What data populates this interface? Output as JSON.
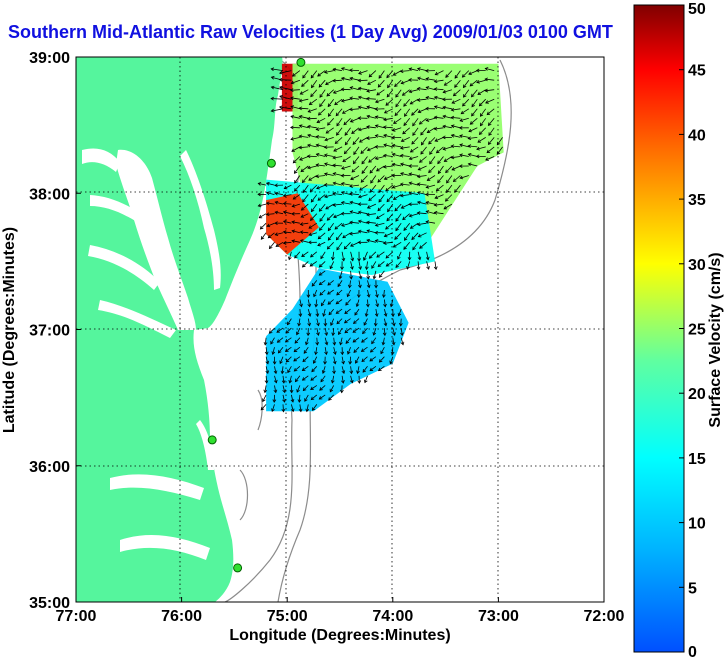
{
  "chart_data": {
    "type": "heatmap",
    "title": "Southern Mid-Atlantic Raw Velocities (1 Day Avg) 2009/01/03 0100 GMT",
    "xlabel": "Longitude (Degrees:Minutes)",
    "ylabel": "Latitude (Degrees:Minutes)",
    "xlim": [
      -77,
      -72
    ],
    "ylim": [
      35,
      39
    ],
    "x_ticks": [
      "77:00",
      "76:00",
      "75:00",
      "74:00",
      "73:00",
      "72:00"
    ],
    "y_ticks": [
      "35:00",
      "36:00",
      "37:00",
      "38:00",
      "39:00"
    ],
    "grid": true,
    "colorbar": {
      "label": "Surface Velocity (cm/s)",
      "range": [
        0,
        50
      ],
      "ticks": [
        "0",
        "5",
        "10",
        "15",
        "20",
        "25",
        "30",
        "35",
        "40",
        "45",
        "50"
      ],
      "colormap": "jet"
    },
    "stations": [
      {
        "lon": -74.87,
        "lat": 38.96
      },
      {
        "lon": -75.15,
        "lat": 38.22
      },
      {
        "lon": -75.71,
        "lat": 36.19
      },
      {
        "lon": -75.47,
        "lat": 35.25
      }
    ],
    "regions": [
      {
        "name": "north-jet",
        "speed": 47,
        "poly": [
          [
            -75.05,
            38.95
          ],
          [
            -74.9,
            38.95
          ],
          [
            -74.9,
            38.6
          ],
          [
            -75.05,
            38.6
          ]
        ]
      },
      {
        "name": "north-field",
        "speed": 25,
        "poly": [
          [
            -74.95,
            38.95
          ],
          [
            -73.0,
            38.95
          ],
          [
            -72.95,
            38.3
          ],
          [
            -73.2,
            38.2
          ],
          [
            -73.7,
            37.6
          ],
          [
            -74.2,
            37.55
          ],
          [
            -74.5,
            37.5
          ],
          [
            -74.8,
            37.85
          ],
          [
            -74.95,
            38.3
          ]
        ]
      },
      {
        "name": "mid-field",
        "speed": 16,
        "poly": [
          [
            -75.2,
            38.1
          ],
          [
            -73.7,
            38.0
          ],
          [
            -73.6,
            37.5
          ],
          [
            -74.2,
            37.4
          ],
          [
            -74.7,
            37.45
          ],
          [
            -75.0,
            37.55
          ],
          [
            -75.2,
            37.7
          ]
        ]
      },
      {
        "name": "south-jet",
        "speed": 42,
        "poly": [
          [
            -75.2,
            37.95
          ],
          [
            -74.9,
            38.0
          ],
          [
            -74.7,
            37.75
          ],
          [
            -75.0,
            37.55
          ],
          [
            -75.2,
            37.7
          ]
        ]
      },
      {
        "name": "south-field",
        "speed": 10,
        "poly": [
          [
            -74.7,
            37.45
          ],
          [
            -74.05,
            37.35
          ],
          [
            -73.85,
            37.05
          ],
          [
            -74.0,
            36.75
          ],
          [
            -74.4,
            36.6
          ],
          [
            -74.75,
            36.4
          ],
          [
            -75.2,
            36.4
          ],
          [
            -75.2,
            36.95
          ],
          [
            -74.95,
            37.15
          ]
        ]
      }
    ]
  }
}
